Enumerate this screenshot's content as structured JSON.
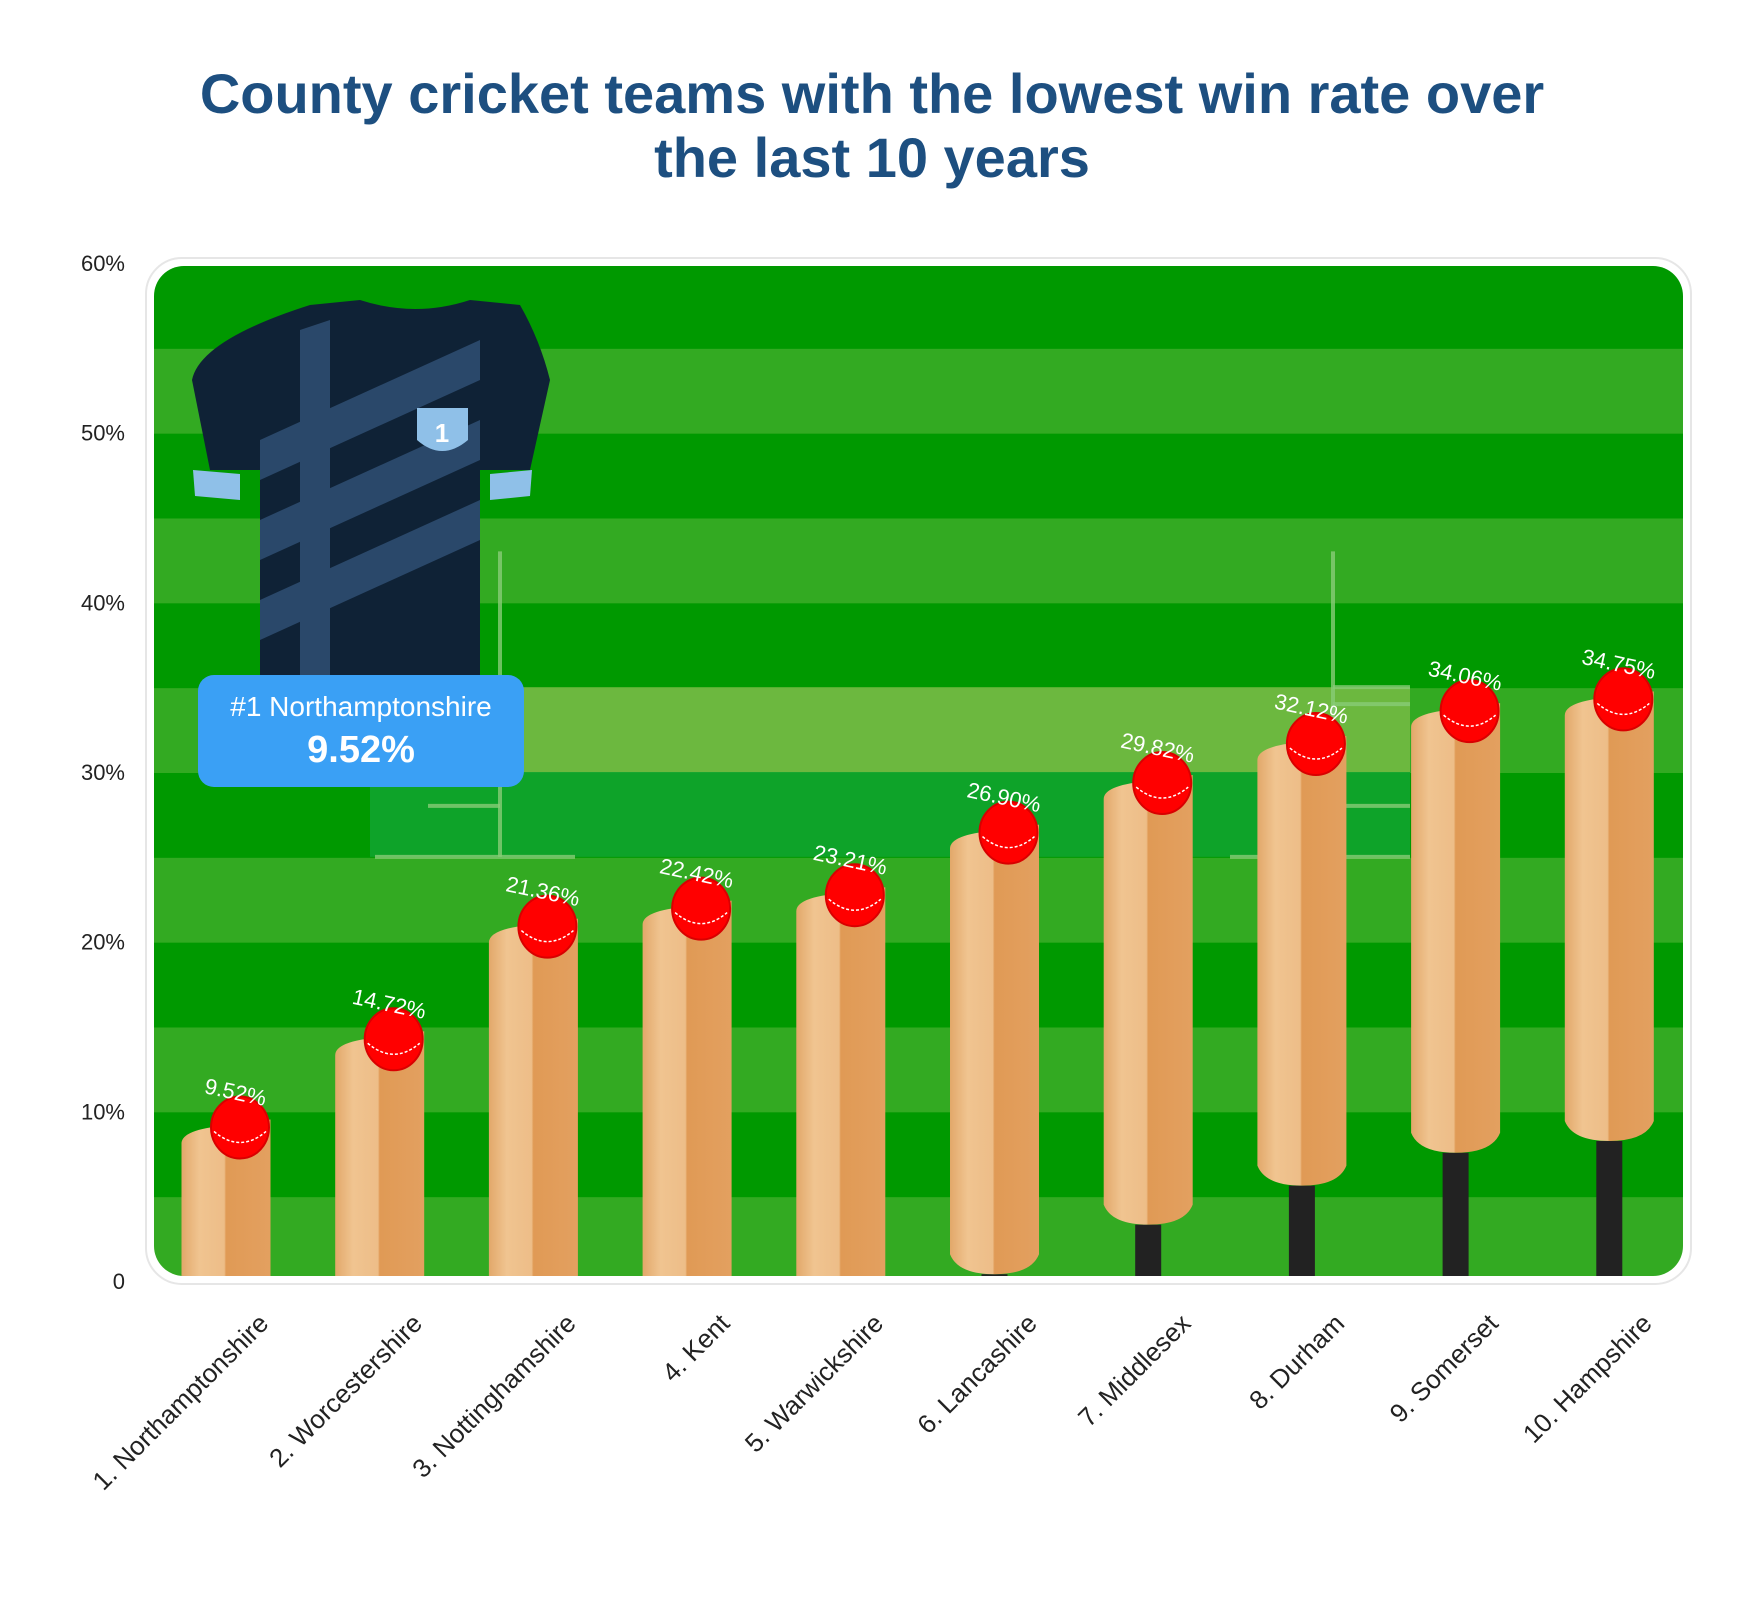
{
  "title_lines": [
    "County cricket teams with the lowest win rate over",
    "the last 10 years"
  ],
  "tooltip": {
    "name": "#1 Northamptonshire",
    "value": "9.52%"
  },
  "jersey": {
    "number": "1"
  },
  "colors": {
    "title": "#1d4f80",
    "tooltip": "#3aa0f5",
    "ball": "#ff0000",
    "bat_light": "#f0c490",
    "bat_dark": "#e09a55",
    "handle": "#222222",
    "grass_dark": "#009900",
    "grass_light": "#33aa22",
    "pitch": "#77bb44",
    "jersey": "#0f2236"
  },
  "chart_data": {
    "type": "bar",
    "title": "County cricket teams with the lowest win rate over the last 10 years",
    "categories": [
      "1. Northamptonshire",
      "2. Worcestershire",
      "3. Nottinghamshire",
      "4. Kent",
      "5. Warwickshire",
      "6. Lancashire",
      "7. Middlesex",
      "8. Durham",
      "9. Somerset",
      "10. Hampshire"
    ],
    "values": [
      9.52,
      14.72,
      21.36,
      22.42,
      23.21,
      26.9,
      29.82,
      32.12,
      34.06,
      34.75
    ],
    "data_labels": [
      "9.52%",
      "14.72%",
      "21.36%",
      "22.42%",
      "23.21%",
      "26.90%",
      "29.82%",
      "32.12%",
      "34.06%",
      "34.75%"
    ],
    "ylim": [
      0,
      60
    ],
    "yticks": [
      0,
      10,
      20,
      30,
      40,
      50,
      60
    ],
    "ytick_labels": [
      "0",
      "10%",
      "20%",
      "30%",
      "40%",
      "50%",
      "60%"
    ],
    "xlabel": "",
    "ylabel": "",
    "grid": false,
    "legend": "none"
  }
}
